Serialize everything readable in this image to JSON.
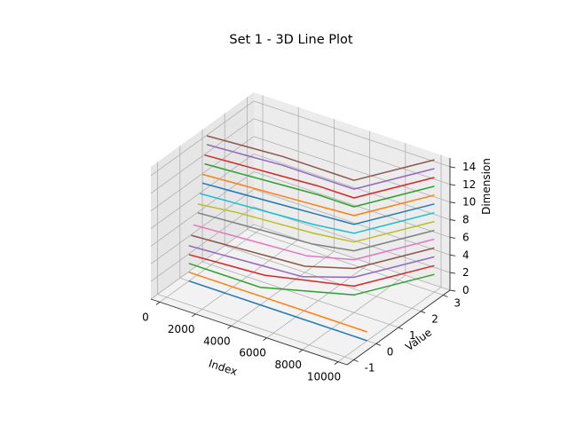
{
  "chart_data": {
    "type": "line",
    "projection": "3d",
    "title": "Set 1 - 3D Line Plot",
    "xlabel": "Index",
    "ylabel": "Value",
    "zlabel": "Dimension",
    "xlim": [
      -500,
      10500
    ],
    "ylim": [
      -1.3,
      3.3
    ],
    "zlim": [
      0,
      15
    ],
    "x_ticks": [
      0,
      2000,
      4000,
      6000,
      8000,
      10000
    ],
    "y_ticks": [
      -1,
      0,
      1,
      2,
      3
    ],
    "z_ticks": [
      0,
      2,
      4,
      6,
      8,
      10,
      12,
      14
    ],
    "grid": true,
    "legend": "none",
    "series": [
      {
        "dimension": 0,
        "color": "#1f77b4",
        "x": [
          0,
          4000,
          8000,
          10000
        ],
        "y": [
          0.0,
          0.0,
          0.0,
          0.0
        ]
      },
      {
        "dimension": 1,
        "color": "#ff7f0e",
        "x": [
          0,
          4000,
          8000,
          10000
        ],
        "y": [
          0.0,
          0.0,
          0.0,
          0.0
        ]
      },
      {
        "dimension": 2,
        "color": "#2ca02c",
        "x": [
          0,
          4000,
          8000,
          10000
        ],
        "y": [
          0.0,
          0.0,
          1.0,
          3.0
        ]
      },
      {
        "dimension": 3,
        "color": "#d62728",
        "x": [
          0,
          4000,
          8000,
          10000
        ],
        "y": [
          0.0,
          0.2,
          1.0,
          3.0
        ]
      },
      {
        "dimension": 4,
        "color": "#9467bd",
        "x": [
          0,
          2000,
          4000,
          6000,
          8000,
          10000
        ],
        "y": [
          0.0,
          0.1,
          0.2,
          0.3,
          1.0,
          3.0
        ]
      },
      {
        "dimension": 5,
        "color": "#8c564b",
        "x": [
          0,
          2000,
          4000,
          6000,
          8000,
          10000
        ],
        "y": [
          0.1,
          0.2,
          0.3,
          0.4,
          1.0,
          3.0
        ]
      },
      {
        "dimension": 6,
        "color": "#e377c2",
        "x": [
          0,
          2000,
          4000,
          6000,
          8000,
          10000
        ],
        "y": [
          0.2,
          0.3,
          0.4,
          0.5,
          1.0,
          3.0
        ]
      },
      {
        "dimension": 7,
        "color": "#7f7f7f",
        "x": [
          0,
          2000,
          4000,
          6000,
          8000,
          10000
        ],
        "y": [
          0.4,
          0.5,
          0.6,
          0.7,
          1.0,
          3.0
        ]
      },
      {
        "dimension": 8,
        "color": "#bcbd22",
        "x": [
          0,
          2000,
          4000,
          6000,
          8000,
          10000
        ],
        "y": [
          0.4,
          0.6,
          0.7,
          0.8,
          1.0,
          3.0
        ]
      },
      {
        "dimension": 9,
        "color": "#17becf",
        "x": [
          0,
          2000,
          4000,
          6000,
          8000,
          10000
        ],
        "y": [
          0.5,
          0.6,
          0.7,
          0.8,
          1.0,
          3.0
        ]
      },
      {
        "dimension": 10,
        "color": "#1f77b4",
        "x": [
          0,
          2000,
          4000,
          6000,
          8000,
          10000
        ],
        "y": [
          0.6,
          0.7,
          0.8,
          0.9,
          1.0,
          3.0
        ]
      },
      {
        "dimension": 11,
        "color": "#ff7f0e",
        "x": [
          0,
          2000,
          4000,
          6000,
          8000,
          10000
        ],
        "y": [
          0.6,
          0.7,
          0.8,
          0.9,
          1.0,
          3.0
        ]
      },
      {
        "dimension": 12,
        "color": "#2ca02c",
        "x": [
          0,
          2000,
          4000,
          6000,
          8000,
          10000
        ],
        "y": [
          0.7,
          0.8,
          0.9,
          1.0,
          1.0,
          3.0
        ]
      },
      {
        "dimension": 13,
        "color": "#d62728",
        "x": [
          0,
          2000,
          4000,
          6000,
          8000,
          10000
        ],
        "y": [
          0.7,
          0.8,
          0.9,
          1.0,
          1.0,
          3.0
        ]
      },
      {
        "dimension": 14,
        "color": "#9467bd",
        "x": [
          0,
          2000,
          4000,
          6000,
          8000,
          10000
        ],
        "y": [
          0.8,
          0.9,
          1.0,
          1.0,
          1.0,
          3.0
        ]
      },
      {
        "dimension": 15,
        "color": "#8c564b",
        "x": [
          0,
          2000,
          4000,
          6000,
          8000,
          10000
        ],
        "y": [
          0.8,
          0.9,
          1.0,
          1.0,
          1.0,
          3.0
        ]
      }
    ]
  }
}
